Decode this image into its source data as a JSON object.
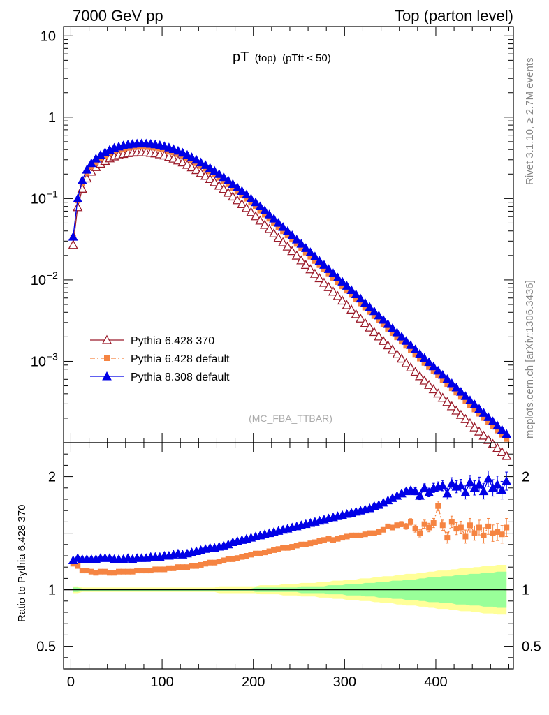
{
  "header": {
    "left": "7000 GeV pp",
    "right": "Top (parton level)"
  },
  "side_labels": {
    "rivet": "Rivet 3.1.10, ≥ 2.7M events",
    "mcplots": "mcplots.cern.ch [arXiv:1306.3436]"
  },
  "plot_title": {
    "main": "pT",
    "sub1": "(top)",
    "sub2": "(pTtt < 50)"
  },
  "analysis_label": "(MC_FBA_TTBAR)",
  "ratio_ylabel": "Ratio to Pythia 6.428 370",
  "colors": {
    "p6_370": "#9b1b2a",
    "p6_default": "#f58442",
    "p8_default": "#0000e6",
    "band_yellow": "#ffff99",
    "band_green": "#99ff99"
  },
  "chart_data": [
    {
      "type": "line",
      "yscale": "log",
      "ylim": [
        0.0001,
        13
      ],
      "xlim": [
        -8,
        485
      ],
      "yticks": [
        {
          "value": 10,
          "label": "10"
        },
        {
          "value": 1,
          "label": "1"
        },
        {
          "value": 0.1,
          "label": "10",
          "exp": "−1"
        },
        {
          "value": 0.01,
          "label": "10",
          "exp": "−2"
        },
        {
          "value": 0.001,
          "label": "10",
          "exp": "−3"
        }
      ],
      "x": [
        2.5,
        7.5,
        12.5,
        17.5,
        22.5,
        27.5,
        32.5,
        37.5,
        42.5,
        47.5,
        52.5,
        57.5,
        62.5,
        67.5,
        72.5,
        77.5,
        82.5,
        87.5,
        92.5,
        97.5,
        102.5,
        107.5,
        112.5,
        117.5,
        122.5,
        127.5,
        132.5,
        137.5,
        142.5,
        147.5,
        152.5,
        157.5,
        162.5,
        167.5,
        172.5,
        177.5,
        182.5,
        187.5,
        192.5,
        197.5,
        202.5,
        207.5,
        212.5,
        217.5,
        222.5,
        227.5,
        232.5,
        237.5,
        242.5,
        247.5,
        252.5,
        257.5,
        262.5,
        267.5,
        272.5,
        277.5,
        282.5,
        287.5,
        292.5,
        297.5,
        302.5,
        307.5,
        312.5,
        317.5,
        322.5,
        327.5,
        332.5,
        337.5,
        342.5,
        347.5,
        352.5,
        357.5,
        362.5,
        367.5,
        372.5,
        377.5,
        382.5,
        387.5,
        392.5,
        397.5,
        402.5,
        407.5,
        412.5,
        417.5,
        422.5,
        427.5,
        432.5,
        437.5,
        442.5,
        447.5,
        452.5,
        457.5,
        462.5,
        467.5,
        472.5,
        477.5
      ],
      "series": [
        {
          "name": "Pythia 6.428 370",
          "marker": "open-triangle",
          "line": "solid",
          "values": [
            0.0269,
            0.0783,
            0.132,
            0.177,
            0.214,
            0.244,
            0.268,
            0.29,
            0.312,
            0.33,
            0.343,
            0.353,
            0.362,
            0.368,
            0.371,
            0.371,
            0.369,
            0.365,
            0.359,
            0.35,
            0.339,
            0.325,
            0.31,
            0.294,
            0.278,
            0.26,
            0.242,
            0.224,
            0.206,
            0.19,
            0.174,
            0.159,
            0.144,
            0.131,
            0.118,
            0.106,
            0.0954,
            0.0855,
            0.0765,
            0.0681,
            0.0606,
            0.0537,
            0.0476,
            0.0422,
            0.0373,
            0.0329,
            0.029,
            0.0257,
            0.0226,
            0.0199,
            0.0174,
            0.0153,
            0.0135,
            0.0119,
            0.0105,
            0.00924,
            0.00815,
            0.00718,
            0.00633,
            0.00557,
            0.0049,
            0.00432,
            0.0038,
            0.00335,
            0.00295,
            0.0026,
            0.00229,
            0.00202,
            0.00178,
            0.00157,
            0.00139,
            0.00122,
            0.00108,
            0.00095,
            0.00084,
            0.000742,
            0.000656,
            0.00058,
            0.000513,
            0.000454,
            0.000402,
            0.000356,
            0.000316,
            0.00028,
            0.000248,
            0.00022,
            0.000195,
            0.000173,
            0.000154,
            0.000137,
            0.000122,
            0.000108,
            9.64e-05,
            8.6e-05,
            7.68e-05,
            6.87e-05
          ]
        },
        {
          "name": "Pythia 6.428 default",
          "marker": "filled-square",
          "line": "dash-dot",
          "values": [
            0.0332,
            0.0948,
            0.154,
            0.207,
            0.248,
            0.281,
            0.31,
            0.336,
            0.36,
            0.38,
            0.397,
            0.409,
            0.42,
            0.428,
            0.432,
            0.433,
            0.432,
            0.428,
            0.422,
            0.413,
            0.401,
            0.386,
            0.369,
            0.352,
            0.333,
            0.313,
            0.292,
            0.272,
            0.251,
            0.233,
            0.215,
            0.197,
            0.18,
            0.165,
            0.15,
            0.135,
            0.122,
            0.11,
            0.0995,
            0.0891,
            0.0798,
            0.0711,
            0.0633,
            0.0565,
            0.0502,
            0.0446,
            0.0396,
            0.0353,
            0.0313,
            0.0277,
            0.0245,
            0.0217,
            0.0193,
            0.0171,
            0.0152,
            0.0135,
            0.012,
            0.0106,
            0.0094,
            0.00834,
            0.0074,
            0.00655,
            0.0058,
            0.00515,
            0.00457,
            0.00405,
            0.00359,
            0.00318,
            0.00283,
            0.00251,
            0.00222,
            0.00197,
            0.00175,
            0.00155,
            0.00137,
            0.00122,
            0.00108,
            0.000956,
            0.000848,
            0.000752,
            0.000668,
            0.000592,
            0.000525,
            0.000466,
            0.000413,
            0.000366,
            0.000325,
            0.000288,
            0.000256,
            0.000227,
            0.000201,
            0.000179,
            0.000159,
            0.000141,
            0.000125,
            0.000111
          ]
        },
        {
          "name": "Pythia 8.308 default",
          "marker": "filled-triangle",
          "line": "solid",
          "values": [
            0.0339,
            0.1,
            0.168,
            0.226,
            0.272,
            0.31,
            0.342,
            0.37,
            0.397,
            0.42,
            0.436,
            0.449,
            0.461,
            0.469,
            0.474,
            0.475,
            0.474,
            0.47,
            0.463,
            0.453,
            0.44,
            0.424,
            0.406,
            0.387,
            0.366,
            0.344,
            0.322,
            0.3,
            0.278,
            0.258,
            0.238,
            0.219,
            0.2,
            0.183,
            0.167,
            0.151,
            0.137,
            0.124,
            0.112,
            0.1,
            0.0899,
            0.0802,
            0.0714,
            0.0636,
            0.0566,
            0.0503,
            0.0447,
            0.0398,
            0.0353,
            0.0313,
            0.0278,
            0.0246,
            0.0219,
            0.0194,
            0.0172,
            0.0153,
            0.0136,
            0.0121,
            0.0107,
            0.00952,
            0.00845,
            0.0075,
            0.00665,
            0.0059,
            0.00523,
            0.00464,
            0.00412,
            0.00365,
            0.00324,
            0.00287,
            0.00255,
            0.00226,
            0.00201,
            0.00178,
            0.00158,
            0.0014,
            0.00124,
            0.0011,
            0.000976,
            0.000866,
            0.000768,
            0.000681,
            0.000604,
            0.000536,
            0.000476,
            0.000422,
            0.000374,
            0.000332,
            0.000295,
            0.000261,
            0.000232,
            0.000206,
            0.000183,
            0.000162,
            0.000144,
            0.000128
          ]
        }
      ],
      "legend_position": "lower-left"
    },
    {
      "type": "line",
      "yscale": "linear",
      "ylim": [
        0.3,
        2.3
      ],
      "xlim": [
        -8,
        485
      ],
      "ylabel": "Ratio to Pythia 6.428 370",
      "yticks": [
        {
          "value": 2,
          "label": "2"
        },
        {
          "value": 1,
          "label": "1"
        },
        {
          "value": 0.5,
          "label": "0.5"
        }
      ],
      "xticks": [
        0,
        100,
        200,
        300,
        400
      ],
      "series": [
        {
          "name": "Pythia 6.428 default",
          "values": [
            1.23,
            1.21,
            1.17,
            1.17,
            1.16,
            1.15,
            1.16,
            1.16,
            1.15,
            1.15,
            1.16,
            1.16,
            1.16,
            1.16,
            1.17,
            1.17,
            1.17,
            1.17,
            1.18,
            1.18,
            1.18,
            1.19,
            1.19,
            1.2,
            1.2,
            1.2,
            1.21,
            1.21,
            1.22,
            1.23,
            1.24,
            1.24,
            1.25,
            1.26,
            1.27,
            1.27,
            1.28,
            1.29,
            1.3,
            1.31,
            1.32,
            1.32,
            1.33,
            1.34,
            1.35,
            1.36,
            1.37,
            1.37,
            1.38,
            1.39,
            1.4,
            1.4,
            1.41,
            1.42,
            1.43,
            1.44,
            1.45,
            1.44,
            1.45,
            1.46,
            1.47,
            1.48,
            1.48,
            1.48,
            1.49,
            1.5,
            1.5,
            1.51,
            1.53,
            1.56,
            1.55,
            1.57,
            1.58,
            1.56,
            1.6,
            1.54,
            1.5,
            1.58,
            1.55,
            1.59,
            1.74,
            1.57,
            1.46,
            1.6,
            1.54,
            1.55,
            1.47,
            1.57,
            1.5,
            1.55,
            1.48,
            1.56,
            1.5,
            1.51,
            1.49,
            1.55
          ]
        },
        {
          "name": "Pythia 8.308 default",
          "values": [
            1.26,
            1.28,
            1.27,
            1.27,
            1.27,
            1.27,
            1.28,
            1.28,
            1.28,
            1.27,
            1.27,
            1.27,
            1.28,
            1.27,
            1.28,
            1.28,
            1.28,
            1.29,
            1.29,
            1.29,
            1.3,
            1.3,
            1.31,
            1.32,
            1.31,
            1.32,
            1.33,
            1.34,
            1.35,
            1.36,
            1.37,
            1.37,
            1.38,
            1.39,
            1.4,
            1.42,
            1.43,
            1.44,
            1.45,
            1.46,
            1.47,
            1.48,
            1.49,
            1.5,
            1.51,
            1.52,
            1.53,
            1.54,
            1.55,
            1.56,
            1.57,
            1.58,
            1.59,
            1.6,
            1.61,
            1.62,
            1.63,
            1.64,
            1.65,
            1.66,
            1.67,
            1.68,
            1.69,
            1.7,
            1.71,
            1.72,
            1.74,
            1.75,
            1.77,
            1.79,
            1.81,
            1.83,
            1.85,
            1.87,
            1.88,
            1.87,
            1.83,
            1.9,
            1.86,
            1.9,
            1.91,
            1.92,
            1.85,
            1.94,
            1.91,
            1.92,
            1.86,
            1.95,
            1.9,
            1.93,
            1.87,
            1.98,
            1.9,
            1.93,
            1.88,
            1.96
          ]
        }
      ],
      "band_green": {
        "lower": [
          0.98,
          0.98,
          0.99,
          0.99,
          0.99,
          0.99,
          0.99,
          0.99,
          0.99,
          0.99,
          0.99,
          0.99,
          0.99,
          0.99,
          0.99,
          0.99,
          0.99,
          0.99,
          0.99,
          0.99,
          0.99,
          0.99,
          0.99,
          0.99,
          0.99,
          0.99,
          0.99,
          0.99,
          0.99,
          0.99,
          0.99,
          0.99,
          0.99,
          0.99,
          0.99,
          0.99,
          0.99,
          0.99,
          0.99,
          0.99,
          0.98,
          0.98,
          0.98,
          0.98,
          0.98,
          0.98,
          0.98,
          0.98,
          0.98,
          0.98,
          0.97,
          0.97,
          0.97,
          0.97,
          0.97,
          0.97,
          0.96,
          0.96,
          0.96,
          0.96,
          0.95,
          0.95,
          0.95,
          0.95,
          0.94,
          0.94,
          0.94,
          0.93,
          0.93,
          0.93,
          0.92,
          0.92,
          0.92,
          0.91,
          0.91,
          0.91,
          0.9,
          0.9,
          0.89,
          0.89,
          0.89,
          0.88,
          0.88,
          0.88,
          0.87,
          0.87,
          0.87,
          0.86,
          0.86,
          0.86,
          0.85,
          0.85,
          0.85,
          0.84,
          0.84,
          0.84
        ],
        "upper": [
          1.02,
          1.02,
          1.01,
          1.01,
          1.01,
          1.01,
          1.01,
          1.01,
          1.01,
          1.01,
          1.01,
          1.01,
          1.01,
          1.01,
          1.01,
          1.01,
          1.01,
          1.01,
          1.01,
          1.01,
          1.01,
          1.01,
          1.01,
          1.01,
          1.01,
          1.01,
          1.01,
          1.01,
          1.01,
          1.01,
          1.01,
          1.01,
          1.01,
          1.01,
          1.01,
          1.01,
          1.01,
          1.01,
          1.01,
          1.01,
          1.02,
          1.02,
          1.02,
          1.02,
          1.02,
          1.02,
          1.02,
          1.02,
          1.02,
          1.02,
          1.03,
          1.03,
          1.03,
          1.03,
          1.03,
          1.03,
          1.04,
          1.04,
          1.04,
          1.04,
          1.05,
          1.05,
          1.05,
          1.05,
          1.06,
          1.06,
          1.06,
          1.07,
          1.07,
          1.07,
          1.08,
          1.08,
          1.08,
          1.09,
          1.09,
          1.09,
          1.1,
          1.1,
          1.11,
          1.11,
          1.11,
          1.12,
          1.12,
          1.12,
          1.13,
          1.13,
          1.13,
          1.14,
          1.14,
          1.14,
          1.15,
          1.15,
          1.15,
          1.16,
          1.16,
          1.16
        ]
      },
      "band_yellow": {
        "lower": [
          0.97,
          0.97,
          0.98,
          0.98,
          0.98,
          0.98,
          0.98,
          0.98,
          0.98,
          0.98,
          0.98,
          0.98,
          0.98,
          0.98,
          0.98,
          0.98,
          0.98,
          0.98,
          0.98,
          0.98,
          0.98,
          0.98,
          0.98,
          0.98,
          0.98,
          0.98,
          0.98,
          0.98,
          0.98,
          0.98,
          0.98,
          0.98,
          0.97,
          0.97,
          0.97,
          0.97,
          0.97,
          0.97,
          0.97,
          0.97,
          0.97,
          0.96,
          0.96,
          0.96,
          0.96,
          0.96,
          0.95,
          0.95,
          0.95,
          0.95,
          0.94,
          0.94,
          0.94,
          0.94,
          0.93,
          0.93,
          0.93,
          0.92,
          0.92,
          0.92,
          0.91,
          0.91,
          0.91,
          0.9,
          0.9,
          0.9,
          0.89,
          0.89,
          0.88,
          0.88,
          0.88,
          0.87,
          0.87,
          0.86,
          0.86,
          0.86,
          0.85,
          0.85,
          0.84,
          0.84,
          0.83,
          0.83,
          0.83,
          0.82,
          0.82,
          0.81,
          0.81,
          0.81,
          0.8,
          0.8,
          0.79,
          0.79,
          0.79,
          0.78,
          0.78,
          0.78
        ],
        "upper": [
          1.03,
          1.03,
          1.02,
          1.02,
          1.02,
          1.02,
          1.02,
          1.02,
          1.02,
          1.02,
          1.02,
          1.02,
          1.02,
          1.02,
          1.02,
          1.02,
          1.02,
          1.02,
          1.02,
          1.02,
          1.02,
          1.02,
          1.02,
          1.02,
          1.02,
          1.02,
          1.02,
          1.02,
          1.02,
          1.02,
          1.02,
          1.02,
          1.03,
          1.03,
          1.03,
          1.03,
          1.03,
          1.03,
          1.03,
          1.03,
          1.03,
          1.04,
          1.04,
          1.04,
          1.04,
          1.04,
          1.05,
          1.05,
          1.05,
          1.05,
          1.06,
          1.06,
          1.06,
          1.06,
          1.07,
          1.07,
          1.07,
          1.08,
          1.08,
          1.08,
          1.09,
          1.09,
          1.09,
          1.1,
          1.1,
          1.1,
          1.11,
          1.11,
          1.12,
          1.12,
          1.12,
          1.13,
          1.13,
          1.14,
          1.14,
          1.14,
          1.15,
          1.15,
          1.16,
          1.16,
          1.17,
          1.17,
          1.17,
          1.18,
          1.18,
          1.19,
          1.19,
          1.19,
          1.2,
          1.2,
          1.21,
          1.21,
          1.21,
          1.22,
          1.22,
          1.22
        ]
      }
    }
  ]
}
